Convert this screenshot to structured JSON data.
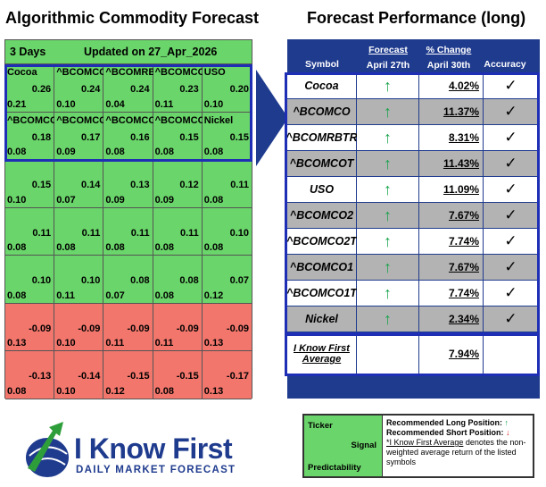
{
  "left_title": "Algorithmic Commodity Forecast",
  "right_title": "Forecast Performance (long)",
  "grid": {
    "days": "3 Days",
    "updated": "Updated on 27_Apr_2026",
    "cells": [
      {
        "ticker": "Cocoa",
        "signal": "0.26",
        "predictability": "0.21",
        "type": "pos"
      },
      {
        "ticker": "^BCOMCO",
        "signal": "0.24",
        "predictability": "0.10",
        "type": "pos"
      },
      {
        "ticker": "^BCOMRBTR",
        "signal": "0.24",
        "predictability": "0.04",
        "type": "pos"
      },
      {
        "ticker": "^BCOMCOT",
        "signal": "0.23",
        "predictability": "0.11",
        "type": "pos"
      },
      {
        "ticker": "USO",
        "signal": "0.20",
        "predictability": "0.10",
        "type": "pos"
      },
      {
        "ticker": "^BCOMCO2",
        "signal": "0.18",
        "predictability": "0.08",
        "type": "pos"
      },
      {
        "ticker": "^BCOMCO2T",
        "signal": "0.17",
        "predictability": "0.09",
        "type": "pos"
      },
      {
        "ticker": "^BCOMCO1",
        "signal": "0.16",
        "predictability": "0.08",
        "type": "pos"
      },
      {
        "ticker": "^BCOMCO1T",
        "signal": "0.15",
        "predictability": "0.08",
        "type": "pos"
      },
      {
        "ticker": "Nickel",
        "signal": "0.15",
        "predictability": "0.08",
        "type": "pos"
      },
      {
        "ticker": "",
        "signal": "0.15",
        "predictability": "0.10",
        "type": "pos"
      },
      {
        "ticker": "",
        "signal": "0.14",
        "predictability": "0.07",
        "type": "pos"
      },
      {
        "ticker": "",
        "signal": "0.13",
        "predictability": "0.09",
        "type": "pos"
      },
      {
        "ticker": "",
        "signal": "0.12",
        "predictability": "0.09",
        "type": "pos"
      },
      {
        "ticker": "",
        "signal": "0.11",
        "predictability": "0.08",
        "type": "pos"
      },
      {
        "ticker": "",
        "signal": "0.11",
        "predictability": "0.08",
        "type": "pos"
      },
      {
        "ticker": "",
        "signal": "0.11",
        "predictability": "0.08",
        "type": "pos"
      },
      {
        "ticker": "",
        "signal": "0.11",
        "predictability": "0.08",
        "type": "pos"
      },
      {
        "ticker": "",
        "signal": "0.11",
        "predictability": "0.08",
        "type": "pos"
      },
      {
        "ticker": "",
        "signal": "0.10",
        "predictability": "0.08",
        "type": "pos"
      },
      {
        "ticker": "",
        "signal": "0.10",
        "predictability": "0.08",
        "type": "pos"
      },
      {
        "ticker": "",
        "signal": "0.10",
        "predictability": "0.11",
        "type": "pos"
      },
      {
        "ticker": "",
        "signal": "0.08",
        "predictability": "0.07",
        "type": "pos"
      },
      {
        "ticker": "",
        "signal": "0.08",
        "predictability": "0.08",
        "type": "pos"
      },
      {
        "ticker": "",
        "signal": "0.07",
        "predictability": "0.12",
        "type": "pos"
      },
      {
        "ticker": "",
        "signal": "-0.09",
        "predictability": "0.13",
        "type": "neg"
      },
      {
        "ticker": "",
        "signal": "-0.09",
        "predictability": "0.10",
        "type": "neg"
      },
      {
        "ticker": "",
        "signal": "-0.09",
        "predictability": "0.11",
        "type": "neg"
      },
      {
        "ticker": "",
        "signal": "-0.09",
        "predictability": "0.11",
        "type": "neg"
      },
      {
        "ticker": "",
        "signal": "-0.09",
        "predictability": "0.13",
        "type": "neg"
      },
      {
        "ticker": "",
        "signal": "-0.13",
        "predictability": "0.08",
        "type": "neg"
      },
      {
        "ticker": "",
        "signal": "-0.14",
        "predictability": "0.10",
        "type": "neg"
      },
      {
        "ticker": "",
        "signal": "-0.15",
        "predictability": "0.12",
        "type": "neg"
      },
      {
        "ticker": "",
        "signal": "-0.15",
        "predictability": "0.08",
        "type": "neg"
      },
      {
        "ticker": "",
        "signal": "-0.17",
        "predictability": "0.13",
        "type": "neg"
      }
    ]
  },
  "perf": {
    "head_symbol": "Symbol",
    "head_forecast": "Forecast",
    "head_forecast_date": "April 27th",
    "head_change": "% Change",
    "head_change_date": "April 30th",
    "head_accuracy": "Accuracy",
    "rows": [
      {
        "symbol": "Cocoa",
        "arrow": "↑",
        "change": "4.02%",
        "acc": "✓",
        "shade": "light"
      },
      {
        "symbol": "^BCOMCO",
        "arrow": "↑",
        "change": "11.37%",
        "acc": "✓",
        "shade": "dark"
      },
      {
        "symbol": "^BCOMRBTR",
        "arrow": "↑",
        "change": "8.31%",
        "acc": "✓",
        "shade": "light"
      },
      {
        "symbol": "^BCOMCOT",
        "arrow": "↑",
        "change": "11.43%",
        "acc": "✓",
        "shade": "dark"
      },
      {
        "symbol": "USO",
        "arrow": "↑",
        "change": "11.09%",
        "acc": "✓",
        "shade": "light"
      },
      {
        "symbol": "^BCOMCO2",
        "arrow": "↑",
        "change": "7.67%",
        "acc": "✓",
        "shade": "dark"
      },
      {
        "symbol": "^BCOMCO2T",
        "arrow": "↑",
        "change": "7.74%",
        "acc": "✓",
        "shade": "light"
      },
      {
        "symbol": "^BCOMCO1",
        "arrow": "↑",
        "change": "7.67%",
        "acc": "✓",
        "shade": "dark"
      },
      {
        "symbol": "^BCOMCO1T",
        "arrow": "↑",
        "change": "7.74%",
        "acc": "✓",
        "shade": "light"
      },
      {
        "symbol": "Nickel",
        "arrow": "↑",
        "change": "2.34%",
        "acc": "✓",
        "shade": "dark"
      }
    ],
    "avg_label_1": "I Know First",
    "avg_label_2": "Average",
    "avg_value": "7.94%"
  },
  "logo": {
    "brand": "I Know First",
    "tagline": "DAILY MARKET FORECAST"
  },
  "legend": {
    "ticker": "Ticker",
    "signal": "Signal",
    "predictability": "Predictability",
    "long_label": "Recommended Long Position:",
    "long_arrow": "↑",
    "short_label": "Recommended Short Position:",
    "short_arrow": "↓",
    "note_prefix": "*I Know First Average",
    "note_rest": " denotes the non-weighted average return of the listed symbols"
  },
  "colors": {
    "positive": "#6ad56a",
    "negative": "#f2766c",
    "accent": "#1f3b8e",
    "highlight_border": "#1f2fb5",
    "up_arrow": "#16a34a"
  }
}
